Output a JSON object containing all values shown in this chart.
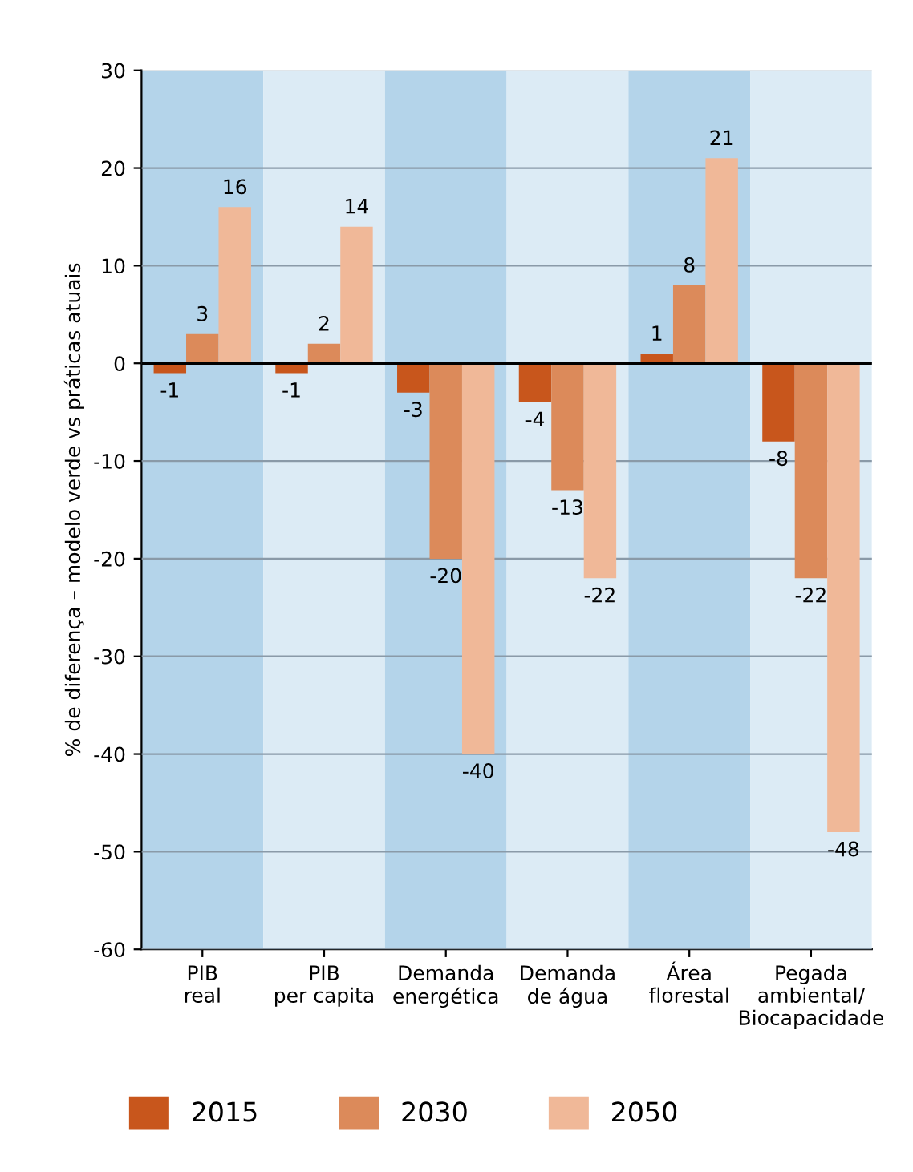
{
  "chart_data": {
    "type": "bar",
    "ylabel": "% de diferença – modelo verde vs práticas atuais",
    "categories": [
      "PIB\nreal",
      "PIB\nper capita",
      "Demanda\nenergética",
      "Demanda\nde água",
      "Área\nflorestal",
      "Pegada\nambiental/\nBiocapacidade"
    ],
    "series": [
      {
        "name": "2015",
        "color": "#c8561c",
        "values": [
          -1,
          -1,
          -3,
          -4,
          1,
          -8
        ]
      },
      {
        "name": "2030",
        "color": "#dc8a5a",
        "values": [
          3,
          2,
          -20,
          -13,
          8,
          -22
        ]
      },
      {
        "name": "2050",
        "color": "#f0b898",
        "values": [
          16,
          14,
          -40,
          -22,
          21,
          -48
        ]
      }
    ],
    "ylim": [
      -60,
      30
    ],
    "yticks": [
      -60,
      -50,
      -40,
      -30,
      -20,
      -10,
      0,
      10,
      20,
      30
    ],
    "grid": "y",
    "legend": "bottom",
    "data_labels": true
  }
}
